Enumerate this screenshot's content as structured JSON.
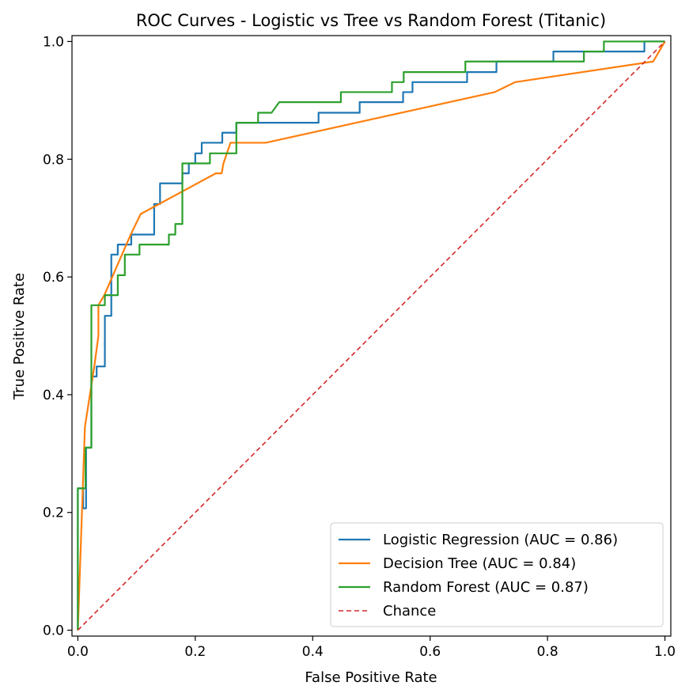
{
  "chart_data": {
    "type": "line",
    "title": "ROC Curves - Logistic vs Tree vs Random Forest (Titanic)",
    "xlabel": "False Positive Rate",
    "ylabel": "True Positive Rate",
    "xlim": [
      -0.01,
      1.01
    ],
    "ylim": [
      -0.01,
      1.01
    ],
    "xticks": [
      0.0,
      0.2,
      0.4,
      0.6,
      0.8,
      1.0
    ],
    "yticks": [
      0.0,
      0.2,
      0.4,
      0.6,
      0.8,
      1.0
    ],
    "tick_labels": [
      "0.0",
      "0.2",
      "0.4",
      "0.6",
      "0.8",
      "1.0"
    ],
    "grid": false,
    "legend_position": "bottom-right",
    "series": [
      {
        "name": "Logistic Regression (AUC = 0.86)",
        "color": "#1f77b4",
        "style": "solid",
        "points": [
          [
            0,
            0
          ],
          [
            0,
            0.241
          ],
          [
            0.009,
            0.241
          ],
          [
            0.009,
            0.207
          ],
          [
            0.014,
            0.207
          ],
          [
            0.014,
            0.31
          ],
          [
            0.023,
            0.31
          ],
          [
            0.023,
            0.431
          ],
          [
            0.032,
            0.431
          ],
          [
            0.032,
            0.448
          ],
          [
            0.046,
            0.448
          ],
          [
            0.046,
            0.534
          ],
          [
            0.057,
            0.534
          ],
          [
            0.057,
            0.638
          ],
          [
            0.068,
            0.638
          ],
          [
            0.068,
            0.655
          ],
          [
            0.091,
            0.655
          ],
          [
            0.091,
            0.672
          ],
          [
            0.13,
            0.672
          ],
          [
            0.13,
            0.724
          ],
          [
            0.14,
            0.724
          ],
          [
            0.14,
            0.759
          ],
          [
            0.178,
            0.759
          ],
          [
            0.178,
            0.776
          ],
          [
            0.189,
            0.776
          ],
          [
            0.189,
            0.793
          ],
          [
            0.2,
            0.793
          ],
          [
            0.2,
            0.81
          ],
          [
            0.211,
            0.81
          ],
          [
            0.211,
            0.828
          ],
          [
            0.246,
            0.828
          ],
          [
            0.246,
            0.845
          ],
          [
            0.27,
            0.845
          ],
          [
            0.27,
            0.862
          ],
          [
            0.41,
            0.862
          ],
          [
            0.41,
            0.879
          ],
          [
            0.48,
            0.879
          ],
          [
            0.48,
            0.897
          ],
          [
            0.554,
            0.897
          ],
          [
            0.554,
            0.914
          ],
          [
            0.57,
            0.914
          ],
          [
            0.57,
            0.931
          ],
          [
            0.663,
            0.931
          ],
          [
            0.663,
            0.948
          ],
          [
            0.713,
            0.948
          ],
          [
            0.713,
            0.966
          ],
          [
            0.81,
            0.966
          ],
          [
            0.81,
            0.983
          ],
          [
            0.965,
            0.983
          ],
          [
            0.965,
            1.0
          ],
          [
            1.0,
            1.0
          ]
        ]
      },
      {
        "name": "Decision Tree (AUC = 0.84)",
        "color": "#ff7f0e",
        "style": "solid",
        "points": [
          [
            0,
            0
          ],
          [
            0.012,
            0.345
          ],
          [
            0.028,
            0.448
          ],
          [
            0.035,
            0.5
          ],
          [
            0.035,
            0.552
          ],
          [
            0.045,
            0.569
          ],
          [
            0.09,
            0.672
          ],
          [
            0.107,
            0.707
          ],
          [
            0.235,
            0.776
          ],
          [
            0.245,
            0.776
          ],
          [
            0.248,
            0.793
          ],
          [
            0.26,
            0.828
          ],
          [
            0.32,
            0.828
          ],
          [
            0.71,
            0.914
          ],
          [
            0.745,
            0.931
          ],
          [
            0.98,
            0.966
          ],
          [
            1.0,
            1.0
          ]
        ]
      },
      {
        "name": "Random Forest (AUC = 0.87)",
        "color": "#2ca02c",
        "style": "solid",
        "points": [
          [
            0,
            0
          ],
          [
            0,
            0.241
          ],
          [
            0.013,
            0.241
          ],
          [
            0.013,
            0.31
          ],
          [
            0.023,
            0.31
          ],
          [
            0.023,
            0.552
          ],
          [
            0.046,
            0.552
          ],
          [
            0.046,
            0.569
          ],
          [
            0.068,
            0.569
          ],
          [
            0.068,
            0.603
          ],
          [
            0.08,
            0.603
          ],
          [
            0.08,
            0.638
          ],
          [
            0.105,
            0.638
          ],
          [
            0.105,
            0.655
          ],
          [
            0.155,
            0.655
          ],
          [
            0.155,
            0.672
          ],
          [
            0.166,
            0.672
          ],
          [
            0.166,
            0.69
          ],
          [
            0.178,
            0.69
          ],
          [
            0.178,
            0.793
          ],
          [
            0.225,
            0.793
          ],
          [
            0.225,
            0.81
          ],
          [
            0.27,
            0.81
          ],
          [
            0.27,
            0.862
          ],
          [
            0.307,
            0.862
          ],
          [
            0.307,
            0.879
          ],
          [
            0.33,
            0.879
          ],
          [
            0.343,
            0.897
          ],
          [
            0.448,
            0.897
          ],
          [
            0.448,
            0.914
          ],
          [
            0.535,
            0.914
          ],
          [
            0.535,
            0.931
          ],
          [
            0.555,
            0.931
          ],
          [
            0.555,
            0.948
          ],
          [
            0.66,
            0.948
          ],
          [
            0.66,
            0.966
          ],
          [
            0.862,
            0.966
          ],
          [
            0.862,
            0.983
          ],
          [
            0.896,
            0.983
          ],
          [
            0.896,
            1.0
          ],
          [
            1.0,
            1.0
          ]
        ]
      },
      {
        "name": "Chance",
        "color": "#d62728",
        "style": "dashed",
        "points": [
          [
            0,
            0
          ],
          [
            1,
            1
          ]
        ]
      }
    ]
  }
}
